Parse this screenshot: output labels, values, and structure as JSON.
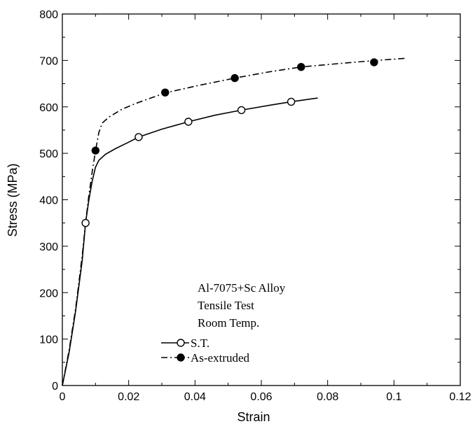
{
  "chart_data": {
    "type": "line",
    "xlabel": "Strain",
    "ylabel": "Stress (MPa)",
    "xlim": [
      0,
      0.12
    ],
    "ylim": [
      0,
      800
    ],
    "xticks": [
      "0",
      "0.02",
      "0.04",
      "0.06",
      "0.08",
      "0.1",
      "0.12"
    ],
    "yticks": [
      "0",
      "100",
      "200",
      "300",
      "400",
      "500",
      "600",
      "700",
      "800"
    ],
    "grid": false,
    "annotation": [
      "Al-7075+Sc Alloy",
      "Tensile Test",
      "Room Temp."
    ],
    "legend_position": "bottom-center",
    "series": [
      {
        "name": "S.T.",
        "line_style": "solid",
        "marker": "open-circle",
        "color": "#000000",
        "curve": [
          [
            0,
            0
          ],
          [
            0.002,
            70
          ],
          [
            0.004,
            160
          ],
          [
            0.006,
            270
          ],
          [
            0.007,
            350
          ],
          [
            0.008,
            400
          ],
          [
            0.009,
            440
          ],
          [
            0.01,
            470
          ],
          [
            0.011,
            485
          ],
          [
            0.013,
            498
          ],
          [
            0.016,
            510
          ],
          [
            0.02,
            524
          ],
          [
            0.023,
            535
          ],
          [
            0.03,
            552
          ],
          [
            0.038,
            568
          ],
          [
            0.046,
            582
          ],
          [
            0.054,
            593
          ],
          [
            0.062,
            603
          ],
          [
            0.069,
            611
          ],
          [
            0.077,
            619
          ]
        ],
        "markers": [
          [
            0.007,
            350
          ],
          [
            0.023,
            535
          ],
          [
            0.038,
            568
          ],
          [
            0.054,
            593
          ],
          [
            0.069,
            611
          ]
        ]
      },
      {
        "name": "As-extruded",
        "line_style": "dash-dot",
        "marker": "filled-circle",
        "color": "#000000",
        "curve": [
          [
            0,
            0
          ],
          [
            0.002,
            75
          ],
          [
            0.004,
            165
          ],
          [
            0.006,
            280
          ],
          [
            0.007,
            350
          ],
          [
            0.008,
            410
          ],
          [
            0.009,
            460
          ],
          [
            0.01,
            505
          ],
          [
            0.011,
            545
          ],
          [
            0.012,
            565
          ],
          [
            0.014,
            578
          ],
          [
            0.018,
            595
          ],
          [
            0.022,
            607
          ],
          [
            0.031,
            630
          ],
          [
            0.041,
            646
          ],
          [
            0.052,
            662
          ],
          [
            0.062,
            675
          ],
          [
            0.072,
            686
          ],
          [
            0.083,
            693
          ],
          [
            0.093,
            699
          ],
          [
            0.104,
            705
          ]
        ],
        "markers": [
          [
            0.01,
            506
          ],
          [
            0.031,
            631
          ],
          [
            0.052,
            662
          ],
          [
            0.072,
            686
          ],
          [
            0.094,
            696
          ]
        ]
      }
    ]
  }
}
